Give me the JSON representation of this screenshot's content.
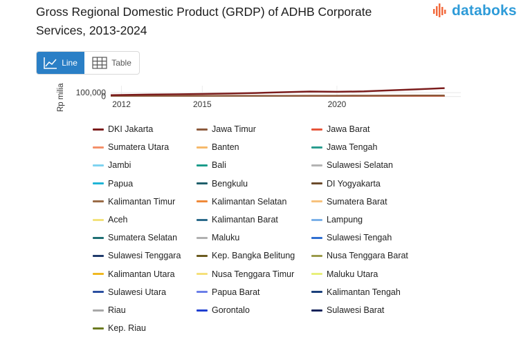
{
  "header": {
    "title": "Gross Regional Domestic Product (GRDP) of ADHB Corporate Services, 2013-2024",
    "logo_text": "databoks"
  },
  "view_toggle": {
    "line_label": "Line",
    "table_label": "Table"
  },
  "chart_data": {
    "type": "line",
    "title": "Gross Regional Domestic Product (GRDP) of ADHB Corporate Services, 2013-2024",
    "ylabel": "Rp miliar",
    "ylabel_visible": "Rp milia",
    "xlim": [
      2011.6,
      2024.6
    ],
    "ylim": [
      -5000,
      280000
    ],
    "x_ticks": [
      2012,
      2015,
      2020
    ],
    "y_ticks": [
      0,
      100000
    ],
    "y_tick_labels": [
      "0",
      "100,000"
    ],
    "grid": true,
    "legend_position": "bottom",
    "x": [
      2011,
      2012,
      2013,
      2014,
      2015,
      2016,
      2017,
      2018,
      2019,
      2020,
      2021,
      2022,
      2023,
      2024
    ],
    "series": [
      {
        "name": "DKI Jakarta",
        "color": "#7b1c1c",
        "values": [
          30000,
          40000,
          50000,
          57000,
          67000,
          77000,
          92000,
          110000,
          128000,
          121000,
          132000,
          160000,
          185000,
          215000
        ]
      },
      {
        "name": "Jawa Timur",
        "color": "#8c5a3c",
        "values": [
          8500,
          10000,
          11500,
          13000,
          14500,
          16000,
          17500,
          19000,
          20500,
          20000,
          21000,
          23000,
          24500,
          26000
        ]
      },
      {
        "name": "Jawa Barat",
        "color": "#e6553a",
        "values": [
          6500,
          7500,
          8500,
          9500,
          10500,
          11500,
          12500,
          13500,
          14500,
          14200,
          15000,
          16500,
          17500,
          19000
        ]
      },
      {
        "name": "Sumatera Utara",
        "color": "#f4906a",
        "values": [
          3000,
          3500,
          3900,
          4300,
          4700,
          5100,
          5500,
          5900,
          6300,
          6200,
          6500,
          7000,
          7500,
          8000
        ]
      },
      {
        "name": "Banten",
        "color": "#f6b96b",
        "values": [
          2000,
          2300,
          2600,
          2900,
          3200,
          3500,
          3800,
          4100,
          4400,
          4300,
          4500,
          4900,
          5200,
          5600
        ]
      },
      {
        "name": "Jawa Tengah",
        "color": "#2a9d8f",
        "values": [
          5000,
          5800,
          6500,
          7200,
          8000,
          8700,
          9400,
          10200,
          11000,
          10800,
          11400,
          12400,
          13300,
          14200
        ]
      },
      {
        "name": "Jambi",
        "color": "#7fd3f0",
        "values": [
          900,
          1000,
          1100,
          1200,
          1300,
          1400,
          1500,
          1600,
          1700,
          1650,
          1750,
          1900,
          2000,
          2150
        ]
      },
      {
        "name": "Bali",
        "color": "#1a9c8a",
        "values": [
          1500,
          1700,
          1900,
          2100,
          2300,
          2500,
          2700,
          2900,
          3100,
          3000,
          3100,
          3400,
          3600,
          3900
        ]
      },
      {
        "name": "Sulawesi Selatan",
        "color": "#b3b3b3",
        "values": [
          2500,
          2900,
          3300,
          3700,
          4100,
          4500,
          4900,
          5300,
          5700,
          5600,
          5900,
          6400,
          6900,
          7400
        ]
      },
      {
        "name": "Papua",
        "color": "#1fb4d6",
        "values": [
          1800,
          2000,
          2200,
          2400,
          2600,
          2800,
          3000,
          3200,
          3400,
          3300,
          3500,
          3800,
          4000,
          4300
        ]
      },
      {
        "name": "Bengkulu",
        "color": "#1f5f6b",
        "values": [
          600,
          650,
          700,
          760,
          820,
          880,
          940,
          1000,
          1060,
          1040,
          1090,
          1180,
          1260,
          1340
        ]
      },
      {
        "name": "DI Yogyakarta",
        "color": "#6b4a2b",
        "values": [
          1300,
          1450,
          1600,
          1750,
          1900,
          2050,
          2200,
          2350,
          2500,
          2450,
          2550,
          2780,
          2960,
          3150
        ]
      },
      {
        "name": "Kalimantan Timur",
        "color": "#9a6b47",
        "values": [
          2200,
          2500,
          2800,
          3100,
          3400,
          3700,
          4000,
          4300,
          4600,
          4500,
          4700,
          5100,
          5500,
          5900
        ]
      },
      {
        "name": "Kalimantan Selatan",
        "color": "#ef8a3a",
        "values": [
          1200,
          1350,
          1500,
          1650,
          1800,
          1950,
          2100,
          2250,
          2400,
          2350,
          2450,
          2680,
          2860,
          3050
        ]
      },
      {
        "name": "Sumatera Barat",
        "color": "#f7c27d",
        "values": [
          1600,
          1800,
          2000,
          2200,
          2400,
          2600,
          2800,
          3000,
          3200,
          3100,
          3300,
          3600,
          3850,
          4100
        ]
      },
      {
        "name": "Aceh",
        "color": "#f3e27a",
        "values": [
          1700,
          1900,
          2100,
          2300,
          2500,
          2700,
          2900,
          3100,
          3300,
          3200,
          3400,
          3700,
          3950,
          4200
        ]
      },
      {
        "name": "Kalimantan Barat",
        "color": "#2b6a8a",
        "values": [
          1300,
          1450,
          1600,
          1750,
          1900,
          2050,
          2200,
          2350,
          2500,
          2450,
          2550,
          2780,
          2960,
          3150
        ]
      },
      {
        "name": "Lampung",
        "color": "#7ab0e8",
        "values": [
          1500,
          1700,
          1900,
          2100,
          2300,
          2500,
          2700,
          2900,
          3100,
          3000,
          3150,
          3450,
          3700,
          3950
        ]
      },
      {
        "name": "Sumatera Selatan",
        "color": "#1e6f73",
        "values": [
          2100,
          2400,
          2700,
          3000,
          3300,
          3600,
          3900,
          4200,
          4500,
          4400,
          4600,
          5000,
          5400,
          5800
        ]
      },
      {
        "name": "Maluku",
        "color": "#b0b0b0",
        "values": [
          500,
          560,
          620,
          680,
          740,
          800,
          860,
          920,
          980,
          960,
          1000,
          1090,
          1160,
          1240
        ]
      },
      {
        "name": "Sulawesi Tengah",
        "color": "#2f6fd1",
        "values": [
          900,
          1000,
          1100,
          1200,
          1300,
          1400,
          1500,
          1600,
          1700,
          1650,
          1750,
          1900,
          2020,
          2160
        ]
      },
      {
        "name": "Sulawesi Tenggara",
        "color": "#1f3a6b",
        "values": [
          700,
          780,
          860,
          940,
          1020,
          1100,
          1180,
          1260,
          1340,
          1310,
          1380,
          1500,
          1600,
          1710
        ]
      },
      {
        "name": "Kep. Bangka Belitung",
        "color": "#6b5a1f",
        "values": [
          500,
          560,
          620,
          680,
          740,
          800,
          860,
          920,
          980,
          960,
          1000,
          1090,
          1160,
          1240
        ]
      },
      {
        "name": "Nusa Tenggara Barat",
        "color": "#9a9a4a",
        "values": [
          900,
          1000,
          1100,
          1200,
          1300,
          1400,
          1500,
          1600,
          1700,
          1650,
          1750,
          1900,
          2020,
          2160
        ]
      },
      {
        "name": "Kalimantan Utara",
        "color": "#f0b820",
        "values": [
          250,
          280,
          310,
          340,
          370,
          400,
          430,
          460,
          490,
          480,
          500,
          545,
          580,
          620
        ]
      },
      {
        "name": "Nusa Tenggara Timur",
        "color": "#f5e07a",
        "values": [
          900,
          1000,
          1100,
          1200,
          1300,
          1400,
          1500,
          1600,
          1700,
          1650,
          1750,
          1900,
          2020,
          2160
        ]
      },
      {
        "name": "Maluku Utara",
        "color": "#e8f07a",
        "values": [
          300,
          340,
          380,
          420,
          460,
          500,
          540,
          580,
          620,
          605,
          635,
          690,
          735,
          785
        ]
      },
      {
        "name": "Sulawesi Utara",
        "color": "#2a4fa0",
        "values": [
          1000,
          1100,
          1200,
          1300,
          1400,
          1500,
          1600,
          1700,
          1800,
          1760,
          1860,
          2020,
          2150,
          2300
        ]
      },
      {
        "name": "Papua Barat",
        "color": "#6a7ee8",
        "values": [
          500,
          560,
          620,
          680,
          740,
          800,
          860,
          920,
          980,
          960,
          1000,
          1090,
          1160,
          1240
        ]
      },
      {
        "name": "Kalimantan Tengah",
        "color": "#1a3f7a",
        "values": [
          800,
          890,
          980,
          1070,
          1160,
          1250,
          1340,
          1430,
          1520,
          1490,
          1570,
          1710,
          1820,
          1950
        ]
      },
      {
        "name": "Riau",
        "color": "#a8a8a8",
        "values": [
          2000,
          2300,
          2600,
          2900,
          3200,
          3500,
          3800,
          4100,
          4400,
          4300,
          4500,
          4900,
          5200,
          5600
        ]
      },
      {
        "name": "Gorontalo",
        "color": "#1f3fd1",
        "values": [
          300,
          340,
          380,
          420,
          460,
          500,
          540,
          580,
          620,
          605,
          635,
          690,
          735,
          785
        ]
      },
      {
        "name": "Sulawesi Barat",
        "color": "#14235a",
        "values": [
          200,
          225,
          250,
          275,
          300,
          325,
          350,
          375,
          400,
          390,
          410,
          445,
          475,
          505
        ]
      },
      {
        "name": "Kep. Riau",
        "color": "#6b7a1f",
        "values": [
          1800,
          2000,
          2200,
          2400,
          2600,
          2800,
          3000,
          3200,
          3400,
          3300,
          3500,
          3800,
          4050,
          4300
        ]
      }
    ]
  }
}
